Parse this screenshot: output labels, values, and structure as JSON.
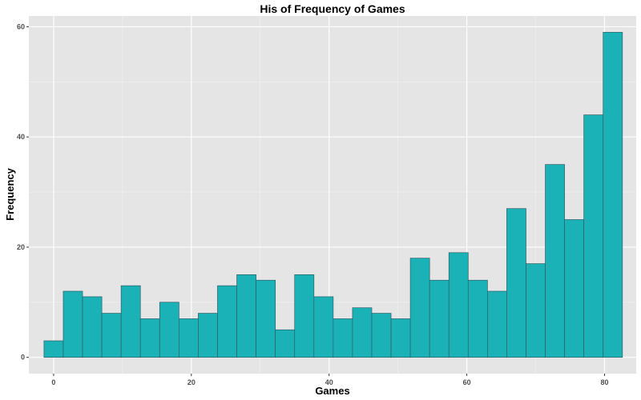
{
  "chart_data": {
    "type": "bar",
    "title": "His of Frequency of Games",
    "xlabel": "Games",
    "ylabel": "Frequency",
    "xlim": [
      -3.6,
      84.6
    ],
    "ylim": [
      -2.95,
      61.95
    ],
    "x_ticks": [
      0,
      20,
      40,
      60,
      80
    ],
    "y_ticks": [
      0,
      20,
      40,
      60
    ],
    "grid": true,
    "legend": "none",
    "bin_width": 2.8,
    "bin_centers": [
      0,
      2.8,
      5.6,
      8.4,
      11.2,
      14,
      16.8,
      19.6,
      22.4,
      25.2,
      28,
      30.8,
      33.6,
      36.4,
      39.2,
      42,
      44.8,
      47.6,
      50.4,
      53.2,
      56,
      58.8,
      61.6,
      64.4,
      67.2,
      70,
      72.8,
      75.6,
      78.4,
      81.2
    ],
    "values": [
      3,
      12,
      11,
      8,
      13,
      7,
      10,
      7,
      8,
      13,
      15,
      14,
      5,
      15,
      11,
      7,
      9,
      8,
      7,
      18,
      14,
      19,
      14,
      12,
      27,
      17,
      35,
      25,
      44,
      59
    ],
    "colors": {
      "bar_fill": "#1ab2b6",
      "bar_stroke": "#2e5f66",
      "panel": "#e5e5e5",
      "grid_major": "#ffffff",
      "grid_minor": "#f2f2f2"
    }
  }
}
